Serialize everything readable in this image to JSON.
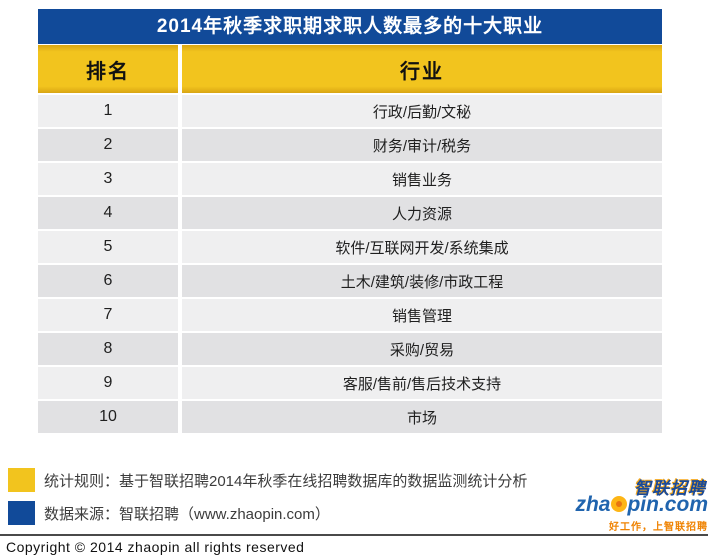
{
  "chart_data": {
    "type": "table",
    "title": "2014年秋季求职期求职人数最多的十大职业",
    "columns": [
      "排名",
      "行业"
    ],
    "rows": [
      [
        "1",
        "行政/后勤/文秘"
      ],
      [
        "2",
        "财务/审计/税务"
      ],
      [
        "3",
        "销售业务"
      ],
      [
        "4",
        "人力资源"
      ],
      [
        "5",
        "软件/互联网开发/系统集成"
      ],
      [
        "6",
        "土木/建筑/装修/市政工程"
      ],
      [
        "7",
        "销售管理"
      ],
      [
        "8",
        "采购/贸易"
      ],
      [
        "9",
        "客服/售前/售后技术支持"
      ],
      [
        "10",
        "市场"
      ]
    ]
  },
  "notes": [
    {
      "marker_color": "#f2c41e",
      "text": "统计规则：基于智联招聘2014年秋季在线招聘数据库的数据监测统计分析"
    },
    {
      "marker_color": "#114a99",
      "text": "数据来源：智联招聘（www.zhaopin.com）"
    }
  ],
  "logo": {
    "brand_cn": "智联招聘",
    "en_prefix": "zha",
    "en_suffix": "pin.com",
    "tagline": "好工作，上智联招聘"
  },
  "copyright": "Copyright © 2014 zhaopin all rights reserved",
  "colors": {
    "title_bg": "#114a99",
    "header_bg": "#f2c41e",
    "row_light": "#efeff0",
    "row_dark": "#e1e1e3",
    "logo_blue": "#2064ae",
    "logo_orange": "#ef8200"
  }
}
